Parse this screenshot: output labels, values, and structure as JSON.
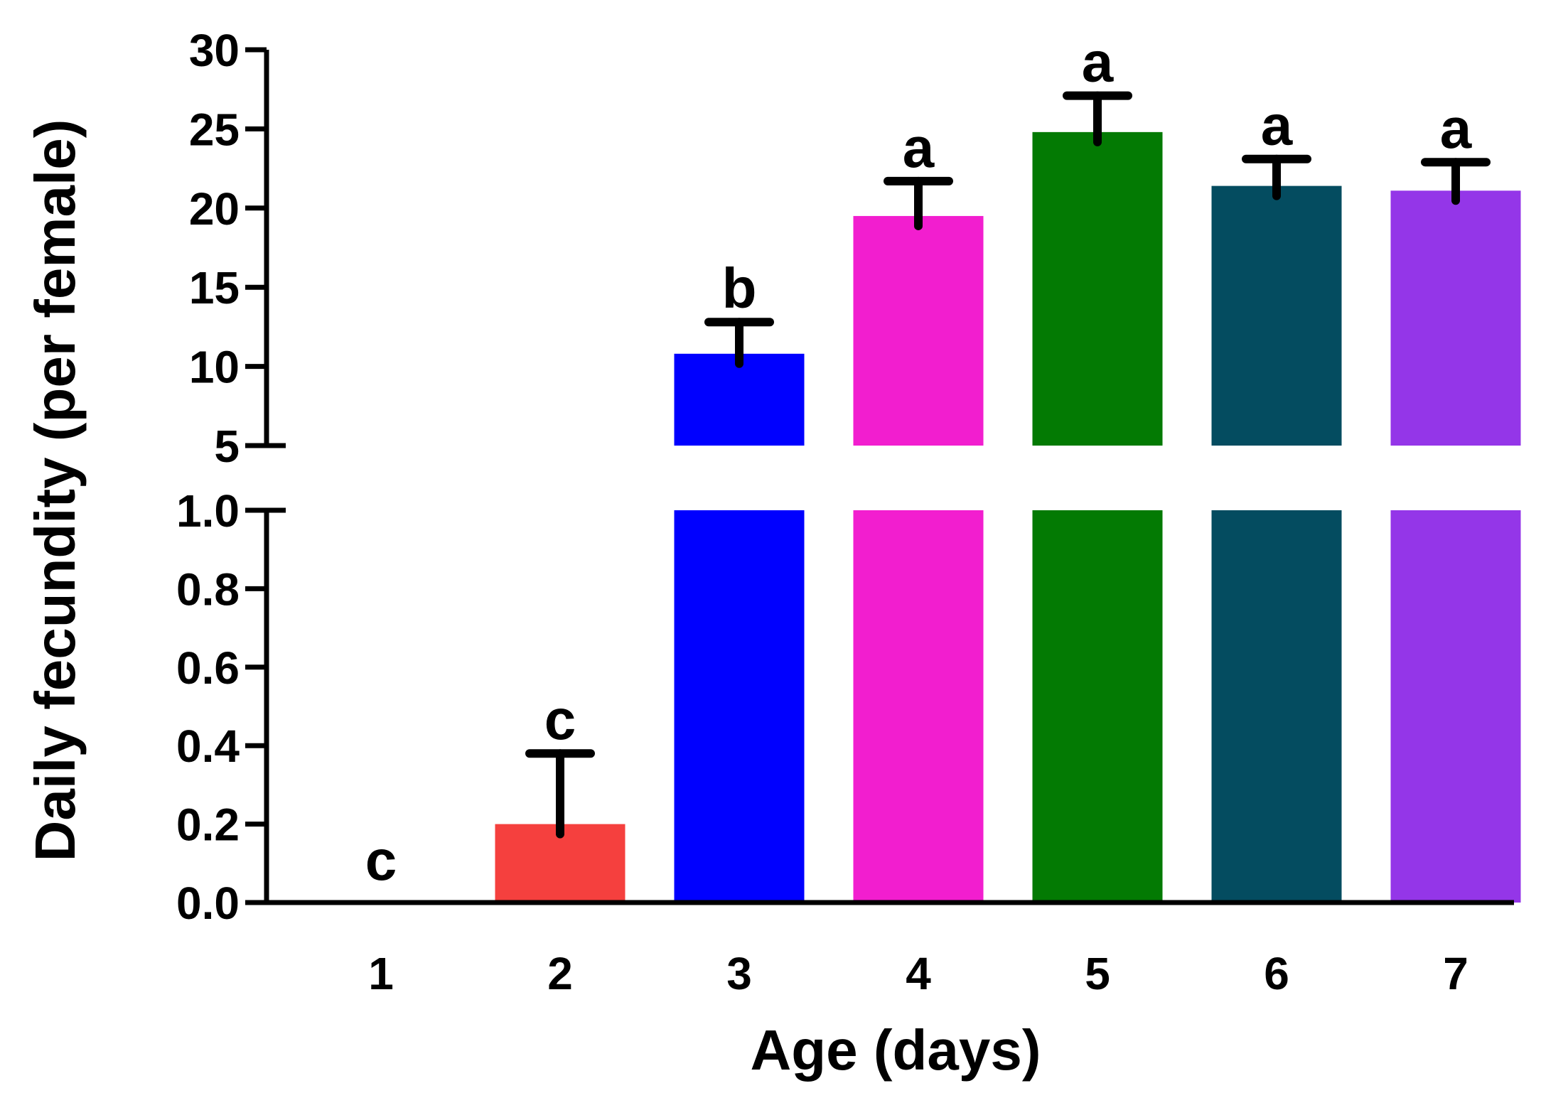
{
  "chart_data": {
    "type": "bar",
    "xlabel": "Age (days)",
    "ylabel": "Daily fecundity (per female)",
    "categories": [
      "1",
      "2",
      "3",
      "4",
      "5",
      "6",
      "7"
    ],
    "values": [
      0.0,
      0.2,
      10.8,
      19.5,
      24.8,
      21.4,
      21.1
    ],
    "errors": [
      0.0,
      0.18,
      2.0,
      2.2,
      2.3,
      1.7,
      1.8
    ],
    "significance": [
      "c",
      "c",
      "b",
      "a",
      "a",
      "a",
      "a"
    ],
    "colors": [
      "#f5403e",
      "#f5403e",
      "#0000ff",
      "#f21ecf",
      "#037a03",
      "#044c60",
      "#9436e8"
    ],
    "broken_axis": {
      "lower": {
        "ylim": [
          0.0,
          1.0
        ],
        "ticks": [
          "0.0",
          "0.2",
          "0.4",
          "0.6",
          "0.8",
          "1.0"
        ]
      },
      "upper": {
        "ylim": [
          5,
          30
        ],
        "ticks": [
          "5",
          "10",
          "15",
          "20",
          "25",
          "30"
        ]
      }
    }
  }
}
